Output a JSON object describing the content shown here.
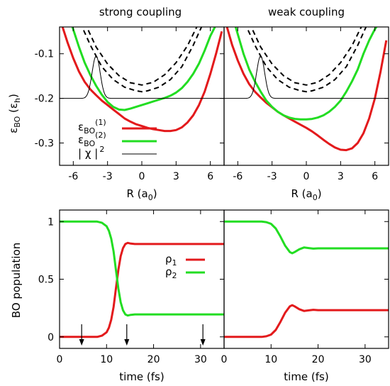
{
  "titles": [
    "strong coupling",
    "weak coupling"
  ],
  "chart_data": [
    {
      "type": "line",
      "panel": "top-left",
      "title": "strong coupling",
      "xlabel_main": "R (a",
      "xlabel_sub": "0",
      "xlabel_end": ")",
      "ylabel_main": "ε",
      "ylabel_sub": "BO",
      "ylabel_rest": " (ε",
      "ylabel_sub2": "h",
      "ylabel_end": ")",
      "xlim": [
        -7.2,
        7.2
      ],
      "ylim": [
        -0.35,
        -0.04
      ],
      "x_ticks": [
        -6,
        -3,
        0,
        3,
        6
      ],
      "x_tick_labels": [
        "-6",
        "-3",
        "0",
        "3",
        "6"
      ],
      "y_ticks": [
        -0.3,
        -0.2,
        -0.1
      ],
      "y_tick_labels": [
        "-0.3",
        "-0.2",
        "-0.1"
      ],
      "legend": [
        {
          "main": "ε",
          "sub": "BO",
          "sup": "(1)",
          "color": "#e31a1c",
          "style": "solid"
        },
        {
          "main": "ε",
          "sub": "BO",
          "sup": "(2)",
          "color": "#22dd22",
          "style": "solid"
        },
        {
          "main": "| χ |",
          "sup": "2",
          "color": "#000000",
          "style": "thin"
        }
      ],
      "series": [
        {
          "color": "#e31a1c",
          "style": "solid",
          "x": [
            -7,
            -6.5,
            -6,
            -5.5,
            -5,
            -4.5,
            -4,
            -3.5,
            -3,
            -2.5,
            -2,
            -1.5,
            -1,
            -0.5,
            0,
            0.5,
            1,
            1.5,
            2,
            2.5,
            3,
            3.5,
            4,
            4.5,
            5,
            5.5,
            6,
            6.5,
            7
          ],
          "y": [
            -0.035,
            -0.075,
            -0.11,
            -0.14,
            -0.163,
            -0.18,
            -0.193,
            -0.205,
            -0.215,
            -0.225,
            -0.235,
            -0.245,
            -0.252,
            -0.258,
            -0.262,
            -0.266,
            -0.269,
            -0.271,
            -0.273,
            -0.273,
            -0.271,
            -0.265,
            -0.254,
            -0.238,
            -0.215,
            -0.185,
            -0.145,
            -0.1,
            -0.05
          ]
        },
        {
          "color": "#22dd22",
          "style": "solid",
          "x": [
            -6.2,
            -5.5,
            -5,
            -4.5,
            -4,
            -3.5,
            -3,
            -2.5,
            -2,
            -1.5,
            -1,
            -0.5,
            0,
            0.5,
            1,
            1.5,
            2,
            2.5,
            3,
            3.5,
            4,
            4.5,
            5,
            5.5,
            6,
            6.5,
            7
          ],
          "y": [
            -0.03,
            -0.085,
            -0.12,
            -0.148,
            -0.172,
            -0.192,
            -0.208,
            -0.219,
            -0.225,
            -0.226,
            -0.223,
            -0.219,
            -0.215,
            -0.211,
            -0.207,
            -0.203,
            -0.199,
            -0.194,
            -0.187,
            -0.177,
            -0.163,
            -0.145,
            -0.122,
            -0.093,
            -0.06,
            -0.035,
            -0.01
          ]
        },
        {
          "color": "#000000",
          "style": "dashed",
          "x": [
            -5,
            -4,
            -3,
            -2,
            -1,
            0,
            1,
            2,
            3,
            4,
            5
          ],
          "y": [
            -0.03,
            -0.085,
            -0.123,
            -0.149,
            -0.165,
            -0.17,
            -0.164,
            -0.147,
            -0.12,
            -0.082,
            -0.03
          ]
        },
        {
          "color": "#000000",
          "style": "dashed",
          "x": [
            -5.4,
            -4.5,
            -3.5,
            -2.5,
            -1.5,
            -0.5,
            0,
            0.5,
            1.5,
            2.5,
            3.5,
            4.5,
            5.4
          ],
          "y": [
            -0.03,
            -0.081,
            -0.129,
            -0.158,
            -0.175,
            -0.183,
            -0.185,
            -0.183,
            -0.175,
            -0.158,
            -0.129,
            -0.081,
            -0.03
          ]
        }
      ],
      "density": {
        "color": "#000000",
        "base": -0.2,
        "center": -4.0,
        "width": 0.5,
        "height": 0.095,
        "x_start": -7.2,
        "x_end": 7.2
      }
    },
    {
      "type": "line",
      "panel": "top-right",
      "title": "weak coupling",
      "xlabel_main": "R (a",
      "xlabel_sub": "0",
      "xlabel_end": ")",
      "xlim": [
        -7.2,
        7.2
      ],
      "ylim": [
        -0.35,
        -0.04
      ],
      "x_ticks": [
        -6,
        -3,
        0,
        3,
        6
      ],
      "x_tick_labels": [
        "-6",
        "-3",
        "0",
        "3",
        "6"
      ],
      "series": [
        {
          "color": "#e31a1c",
          "style": "solid",
          "x": [
            -7,
            -6.5,
            -6,
            -5.5,
            -5,
            -4.5,
            -4,
            -3.5,
            -3,
            -2.5,
            -2,
            -1.5,
            -1,
            -0.5,
            0,
            0.5,
            1,
            1.5,
            2,
            2.5,
            3,
            3.5,
            4,
            4.5,
            5,
            5.5,
            6,
            6.5,
            7
          ],
          "y": [
            -0.035,
            -0.08,
            -0.115,
            -0.145,
            -0.168,
            -0.185,
            -0.198,
            -0.21,
            -0.22,
            -0.23,
            -0.238,
            -0.245,
            -0.252,
            -0.259,
            -0.266,
            -0.274,
            -0.283,
            -0.293,
            -0.302,
            -0.31,
            -0.315,
            -0.316,
            -0.312,
            -0.3,
            -0.278,
            -0.245,
            -0.2,
            -0.14,
            -0.07
          ]
        },
        {
          "color": "#22dd22",
          "style": "solid",
          "x": [
            -6.3,
            -5.5,
            -5,
            -4.5,
            -4,
            -3.5,
            -3,
            -2.5,
            -2,
            -1.5,
            -1,
            -0.5,
            0,
            0.5,
            1,
            1.5,
            2,
            2.5,
            3,
            3.5,
            4,
            4.5,
            5,
            5.5,
            6,
            6.4
          ],
          "y": [
            -0.03,
            -0.1,
            -0.135,
            -0.162,
            -0.185,
            -0.205,
            -0.219,
            -0.23,
            -0.238,
            -0.243,
            -0.246,
            -0.247,
            -0.247,
            -0.246,
            -0.243,
            -0.238,
            -0.23,
            -0.219,
            -0.205,
            -0.185,
            -0.162,
            -0.135,
            -0.1,
            -0.07,
            -0.045,
            -0.03
          ]
        },
        {
          "color": "#000000",
          "style": "dashed",
          "x": [
            -5,
            -4,
            -3,
            -2,
            -1,
            0,
            1,
            2,
            3,
            4,
            5
          ],
          "y": [
            -0.03,
            -0.085,
            -0.123,
            -0.149,
            -0.165,
            -0.17,
            -0.164,
            -0.147,
            -0.12,
            -0.082,
            -0.03
          ]
        },
        {
          "color": "#000000",
          "style": "dashed",
          "x": [
            -5.4,
            -4.5,
            -3.5,
            -2.5,
            -1.5,
            -0.5,
            0,
            0.5,
            1.5,
            2.5,
            3.5,
            4.5,
            5.4
          ],
          "y": [
            -0.03,
            -0.081,
            -0.129,
            -0.158,
            -0.175,
            -0.183,
            -0.185,
            -0.183,
            -0.175,
            -0.158,
            -0.129,
            -0.081,
            -0.03
          ]
        }
      ],
      "density": {
        "color": "#000000",
        "base": -0.2,
        "center": -4.0,
        "width": 0.5,
        "height": 0.095,
        "x_start": -7.2,
        "x_end": 7.2
      }
    },
    {
      "type": "line",
      "panel": "bottom-left",
      "xlabel": "time (fs)",
      "ylabel": "BO population",
      "xlim": [
        0,
        35
      ],
      "ylim": [
        -0.1,
        1.1
      ],
      "x_ticks": [
        0,
        10,
        20,
        30
      ],
      "x_tick_labels": [
        "0",
        "10",
        "20",
        "30"
      ],
      "y_ticks": [
        0,
        0.5,
        1
      ],
      "y_tick_labels": [
        "0",
        "0.5",
        "1"
      ],
      "legend": [
        {
          "main": "ρ",
          "sub": "1",
          "color": "#e31a1c"
        },
        {
          "main": "ρ",
          "sub": "2",
          "color": "#22dd22"
        }
      ],
      "series": [
        {
          "color": "#e31a1c",
          "x": [
            0,
            8,
            9,
            10,
            10.5,
            11,
            11.5,
            12,
            12.5,
            13,
            13.5,
            14,
            14.5,
            15,
            16,
            17,
            20,
            35
          ],
          "y": [
            0,
            0,
            0.01,
            0.04,
            0.08,
            0.15,
            0.26,
            0.42,
            0.58,
            0.7,
            0.77,
            0.805,
            0.815,
            0.81,
            0.805,
            0.805,
            0.805,
            0.805
          ]
        },
        {
          "color": "#22dd22",
          "x": [
            0,
            8,
            9,
            10,
            10.5,
            11,
            11.5,
            12,
            12.5,
            13,
            13.5,
            14,
            14.5,
            15,
            16,
            17,
            20,
            35
          ],
          "y": [
            1,
            1,
            0.99,
            0.96,
            0.92,
            0.85,
            0.74,
            0.58,
            0.42,
            0.3,
            0.23,
            0.195,
            0.185,
            0.19,
            0.195,
            0.195,
            0.195,
            0.195
          ]
        }
      ],
      "arrows_x": [
        4.7,
        14.3,
        30.5
      ]
    },
    {
      "type": "line",
      "panel": "bottom-right",
      "xlabel": "time (fs)",
      "xlim": [
        0,
        35
      ],
      "ylim": [
        -0.1,
        1.1
      ],
      "x_ticks": [
        0,
        10,
        20,
        30
      ],
      "x_tick_labels": [
        "0",
        "10",
        "20",
        "30"
      ],
      "series": [
        {
          "color": "#e31a1c",
          "x": [
            0,
            8,
            9,
            10,
            11,
            12,
            13,
            14,
            14.5,
            15,
            16,
            17,
            18,
            19,
            20,
            22,
            35
          ],
          "y": [
            0,
            0,
            0.005,
            0.02,
            0.06,
            0.13,
            0.21,
            0.265,
            0.275,
            0.265,
            0.24,
            0.225,
            0.23,
            0.235,
            0.232,
            0.232,
            0.232
          ]
        },
        {
          "color": "#22dd22",
          "x": [
            0,
            8,
            9,
            10,
            11,
            12,
            13,
            14,
            14.5,
            15,
            16,
            17,
            18,
            19,
            20,
            22,
            35
          ],
          "y": [
            1,
            1,
            0.995,
            0.98,
            0.94,
            0.87,
            0.79,
            0.735,
            0.725,
            0.735,
            0.76,
            0.775,
            0.77,
            0.765,
            0.768,
            0.768,
            0.768
          ]
        }
      ]
    }
  ]
}
